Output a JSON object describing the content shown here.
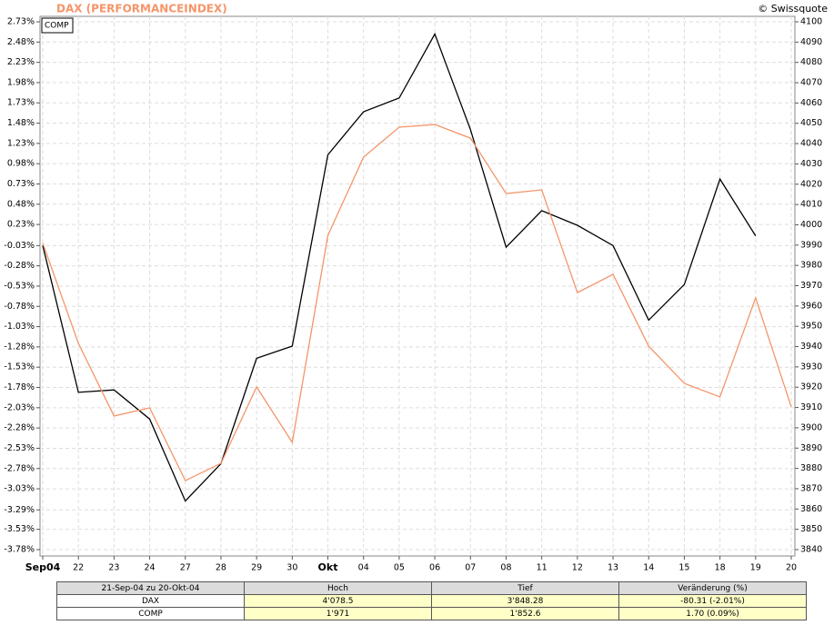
{
  "chart_data": {
    "type": "line",
    "title": "DAX (PERFORMANCEINDEX)",
    "source": "© Swissquote",
    "categories": [
      "Sep04",
      "22",
      "23",
      "24",
      "27",
      "28",
      "29",
      "30",
      "Okt",
      "04",
      "05",
      "06",
      "07",
      "08",
      "11",
      "12",
      "13",
      "14",
      "15",
      "18",
      "19",
      "20"
    ],
    "series": [
      {
        "name": "COMP",
        "color": "#000000",
        "axis": "y",
        "values": [
          -0.03,
          -1.84,
          -1.81,
          -2.17,
          -3.18,
          -2.72,
          -1.42,
          -1.27,
          1.09,
          1.62,
          1.79,
          2.58,
          1.4,
          -0.05,
          0.4,
          0.22,
          -0.03,
          -0.95,
          -0.51,
          0.79,
          0.09,
          null
        ]
      },
      {
        "color": "#f4956a",
        "axis": "y2",
        "values": [
          3991,
          3941.6,
          3905.8,
          3909.8,
          3874,
          3882.5,
          3920.1,
          3892.8,
          3994.8,
          4033.3,
          4048.1,
          4049.4,
          4042.7,
          4015.4,
          4017.2,
          3966.6,
          3975.6,
          3940.2,
          3921.9,
          3915.2,
          3964,
          3910.3
        ]
      }
    ],
    "ylim": [
      -3.78,
      2.73
    ],
    "yticks": [
      {
        "value": 2.73,
        "label": "2.73%"
      },
      {
        "value": 2.48,
        "label": "2.48%"
      },
      {
        "value": 2.23,
        "label": "2.23%"
      },
      {
        "value": 1.98,
        "label": "1.98%"
      },
      {
        "value": 1.73,
        "label": "1.73%"
      },
      {
        "value": 1.48,
        "label": "1.48%"
      },
      {
        "value": 1.23,
        "label": "1.23%"
      },
      {
        "value": 0.98,
        "label": "0.98%"
      },
      {
        "value": 0.73,
        "label": "0.73%"
      },
      {
        "value": 0.48,
        "label": "0.48%"
      },
      {
        "value": 0.23,
        "label": "0.23%"
      },
      {
        "value": -0.03,
        "label": "-0.03%"
      },
      {
        "value": -0.28,
        "label": "-0.28%"
      },
      {
        "value": -0.53,
        "label": "-0.53%"
      },
      {
        "value": -0.78,
        "label": "-0.78%"
      },
      {
        "value": -1.03,
        "label": "-1.03%"
      },
      {
        "value": -1.28,
        "label": "-1.28%"
      },
      {
        "value": -1.53,
        "label": "-1.53%"
      },
      {
        "value": -1.78,
        "label": "-1.78%"
      },
      {
        "value": -2.03,
        "label": "-2.03%"
      },
      {
        "value": -2.28,
        "label": "-2.28%"
      },
      {
        "value": -2.53,
        "label": "-2.53%"
      },
      {
        "value": -2.78,
        "label": "-2.78%"
      },
      {
        "value": -3.03,
        "label": "-3.03%"
      },
      {
        "value": -3.29,
        "label": "-3.29%"
      },
      {
        "value": -3.53,
        "label": "-3.53%"
      },
      {
        "value": -3.78,
        "label": "-3.78%"
      }
    ],
    "y2lim": [
      3840,
      4100
    ],
    "y2ticks": [
      4100,
      4090,
      4080,
      4070,
      4060,
      4050,
      4040,
      4030,
      4020,
      4010,
      4000,
      3990,
      3980,
      3970,
      3960,
      3950,
      3940,
      3930,
      3920,
      3910,
      3900,
      3890,
      3880,
      3870,
      3860,
      3850,
      3840
    ],
    "grid": true,
    "legend": "upper left"
  },
  "table": {
    "header": [
      "21-Sep-04 zu 20-Okt-04",
      "Hoch",
      "Tief",
      "Veränderung (%)"
    ],
    "rows": [
      [
        "DAX",
        "4'078.5",
        "3'848.28",
        "-80.31 (-2.01%)"
      ],
      [
        "COMP",
        "1'971",
        "1'852.6",
        "1.70 (0.09%)"
      ]
    ]
  }
}
